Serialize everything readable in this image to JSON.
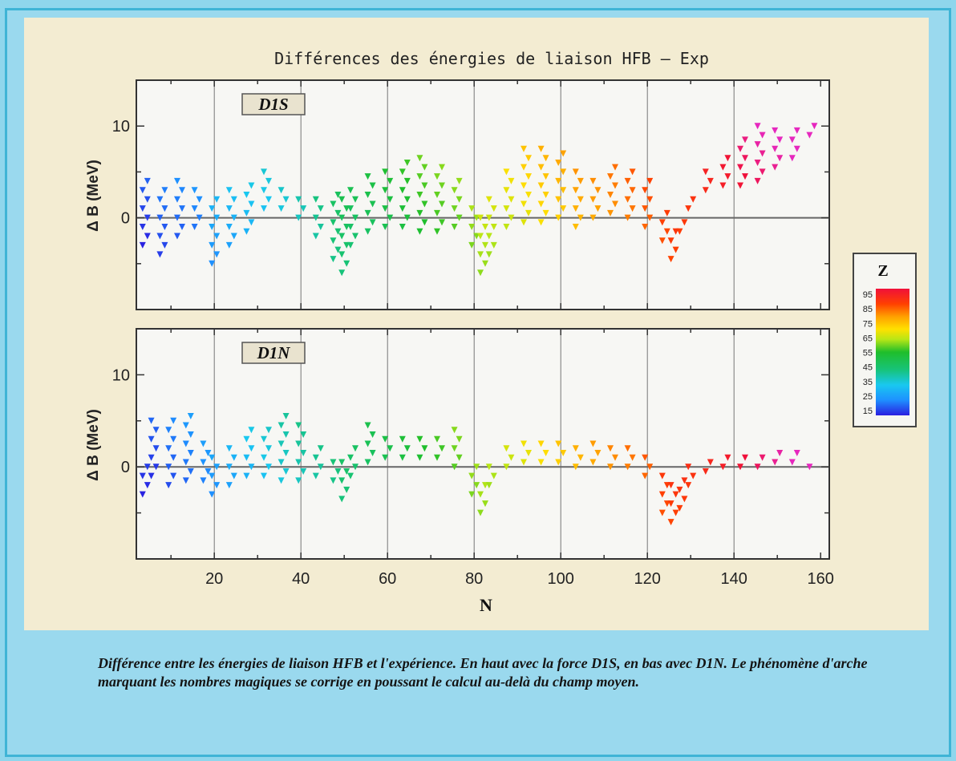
{
  "caption": "Différence entre les énergies de liaison HFB et l'expérience. En haut avec la force D1S, en bas avec D1N. Le phénomène d'arche marquant les nombres magiques se corrige en poussant le calcul au-delà du champ moyen.",
  "colors": {
    "background": "#8fd6ec",
    "panel": "#f3ecd2",
    "plot_bg": "#f7f7f4",
    "zero_line": "#666666",
    "colorbar": [
      "#2a1ee0",
      "#1e90ff",
      "#19c8f0",
      "#17c37a",
      "#1fbe2a",
      "#b8e616",
      "#ffe000",
      "#ffa000",
      "#ff4000",
      "#f0103a"
    ]
  },
  "chart_data": {
    "type": "scatter",
    "title": "Différences des énergies de liaison  HFB  –  Exp",
    "xlabel": "N",
    "ylabel": "Δ B (MeV)",
    "xlim": [
      2,
      162
    ],
    "ylim": [
      -10,
      15
    ],
    "x_ticks": [
      20,
      40,
      60,
      80,
      100,
      120,
      140,
      160
    ],
    "y_ticks": [
      0,
      10
    ],
    "vertical_grid": [
      20,
      40,
      60,
      80,
      100,
      120,
      140
    ],
    "marker": "downward triangle",
    "colorbar": {
      "label": "Z",
      "ticks": [
        "95",
        "85",
        "75",
        "65",
        "55",
        "45",
        "35",
        "25",
        "15"
      ],
      "range": [
        10,
        100
      ]
    },
    "panels": [
      {
        "label": "D1S",
        "band": [
          {
            "n": 4,
            "lo": -3,
            "hi": 4
          },
          {
            "n": 8,
            "lo": -4,
            "hi": 3.5
          },
          {
            "n": 12,
            "lo": -2,
            "hi": 4
          },
          {
            "n": 16,
            "lo": -1,
            "hi": 3.5
          },
          {
            "n": 20,
            "lo": -5,
            "hi": 2
          },
          {
            "n": 24,
            "lo": -3,
            "hi": 3
          },
          {
            "n": 28,
            "lo": -1.5,
            "hi": 4
          },
          {
            "n": 32,
            "lo": 1,
            "hi": 5
          },
          {
            "n": 36,
            "lo": 1,
            "hi": 3
          },
          {
            "n": 40,
            "lo": 0,
            "hi": 2.5
          },
          {
            "n": 44,
            "lo": -2,
            "hi": 2
          },
          {
            "n": 48,
            "lo": -4.5,
            "hi": 2.5
          },
          {
            "n": 50,
            "lo": -6,
            "hi": 2.5
          },
          {
            "n": 52,
            "lo": -3,
            "hi": 3
          },
          {
            "n": 56,
            "lo": -1.5,
            "hi": 5
          },
          {
            "n": 60,
            "lo": -1,
            "hi": 5
          },
          {
            "n": 64,
            "lo": -1,
            "hi": 6
          },
          {
            "n": 68,
            "lo": -1.5,
            "hi": 7
          },
          {
            "n": 72,
            "lo": -1.5,
            "hi": 5.5
          },
          {
            "n": 76,
            "lo": -1,
            "hi": 4.5
          },
          {
            "n": 80,
            "lo": -3,
            "hi": 1.5
          },
          {
            "n": 82,
            "lo": -6,
            "hi": 0
          },
          {
            "n": 84,
            "lo": -4,
            "hi": 2.5
          },
          {
            "n": 88,
            "lo": -1,
            "hi": 5.5
          },
          {
            "n": 92,
            "lo": -0.5,
            "hi": 7.5
          },
          {
            "n": 96,
            "lo": -0.5,
            "hi": 8
          },
          {
            "n": 100,
            "lo": 0,
            "hi": 7
          },
          {
            "n": 104,
            "lo": -1,
            "hi": 5.5
          },
          {
            "n": 108,
            "lo": 0,
            "hi": 4.5
          },
          {
            "n": 112,
            "lo": 0.5,
            "hi": 5.5
          },
          {
            "n": 116,
            "lo": 0,
            "hi": 5
          },
          {
            "n": 120,
            "lo": -1,
            "hi": 4
          },
          {
            "n": 124,
            "lo": -2.5,
            "hi": 0.5
          },
          {
            "n": 126,
            "lo": -4.5,
            "hi": -1.5
          },
          {
            "n": 128,
            "lo": -1.5,
            "hi": 0
          },
          {
            "n": 130,
            "lo": 1,
            "hi": 2.5
          },
          {
            "n": 134,
            "lo": 3,
            "hi": 5
          },
          {
            "n": 138,
            "lo": 3.5,
            "hi": 7
          },
          {
            "n": 142,
            "lo": 3.5,
            "hi": 9
          },
          {
            "n": 146,
            "lo": 4,
            "hi": 10
          },
          {
            "n": 150,
            "lo": 5.5,
            "hi": 10
          },
          {
            "n": 154,
            "lo": 6.5,
            "hi": 10
          },
          {
            "n": 158,
            "lo": 9,
            "hi": 10.5
          }
        ]
      },
      {
        "label": "D1N",
        "band": [
          {
            "n": 4,
            "lo": -3,
            "hi": 0.5
          },
          {
            "n": 6,
            "lo": -1,
            "hi": 5
          },
          {
            "n": 10,
            "lo": -2,
            "hi": 5
          },
          {
            "n": 14,
            "lo": -1.5,
            "hi": 6
          },
          {
            "n": 18,
            "lo": -1.5,
            "hi": 3
          },
          {
            "n": 20,
            "lo": -3,
            "hi": 1
          },
          {
            "n": 24,
            "lo": -2,
            "hi": 2
          },
          {
            "n": 28,
            "lo": -1,
            "hi": 4
          },
          {
            "n": 32,
            "lo": -1,
            "hi": 4.5
          },
          {
            "n": 36,
            "lo": -1.5,
            "hi": 5.5
          },
          {
            "n": 40,
            "lo": -1.5,
            "hi": 4.5
          },
          {
            "n": 44,
            "lo": -1,
            "hi": 2
          },
          {
            "n": 48,
            "lo": -1.5,
            "hi": 0.5
          },
          {
            "n": 50,
            "lo": -3.5,
            "hi": 0.5
          },
          {
            "n": 52,
            "lo": -1,
            "hi": 2
          },
          {
            "n": 56,
            "lo": 0.5,
            "hi": 4.5
          },
          {
            "n": 60,
            "lo": 1,
            "hi": 3
          },
          {
            "n": 64,
            "lo": 1,
            "hi": 3.5
          },
          {
            "n": 68,
            "lo": 1,
            "hi": 3
          },
          {
            "n": 72,
            "lo": 1,
            "hi": 3
          },
          {
            "n": 76,
            "lo": 0,
            "hi": 4
          },
          {
            "n": 80,
            "lo": -3,
            "hi": 0
          },
          {
            "n": 82,
            "lo": -5,
            "hi": -1.5
          },
          {
            "n": 84,
            "lo": -2,
            "hi": 0.5
          },
          {
            "n": 88,
            "lo": 0,
            "hi": 2.5
          },
          {
            "n": 92,
            "lo": 0.5,
            "hi": 2.5
          },
          {
            "n": 96,
            "lo": 0.5,
            "hi": 3
          },
          {
            "n": 100,
            "lo": 0.5,
            "hi": 2.5
          },
          {
            "n": 104,
            "lo": 0,
            "hi": 2.5
          },
          {
            "n": 108,
            "lo": 0.5,
            "hi": 2.5
          },
          {
            "n": 112,
            "lo": 0,
            "hi": 2.5
          },
          {
            "n": 116,
            "lo": 0,
            "hi": 2
          },
          {
            "n": 120,
            "lo": -1,
            "hi": 1.5
          },
          {
            "n": 124,
            "lo": -5,
            "hi": -1
          },
          {
            "n": 126,
            "lo": -6,
            "hi": -1.5
          },
          {
            "n": 128,
            "lo": -4.5,
            "hi": -1
          },
          {
            "n": 130,
            "lo": -2,
            "hi": 0.5
          },
          {
            "n": 134,
            "lo": -0.5,
            "hi": 1
          },
          {
            "n": 138,
            "lo": 0,
            "hi": 1.5
          },
          {
            "n": 142,
            "lo": 0,
            "hi": 1.5
          },
          {
            "n": 146,
            "lo": 0,
            "hi": 1
          },
          {
            "n": 150,
            "lo": 0.5,
            "hi": 1.5
          },
          {
            "n": 154,
            "lo": 0.5,
            "hi": 1.5
          },
          {
            "n": 158,
            "lo": 0,
            "hi": 0.5
          }
        ]
      }
    ]
  }
}
